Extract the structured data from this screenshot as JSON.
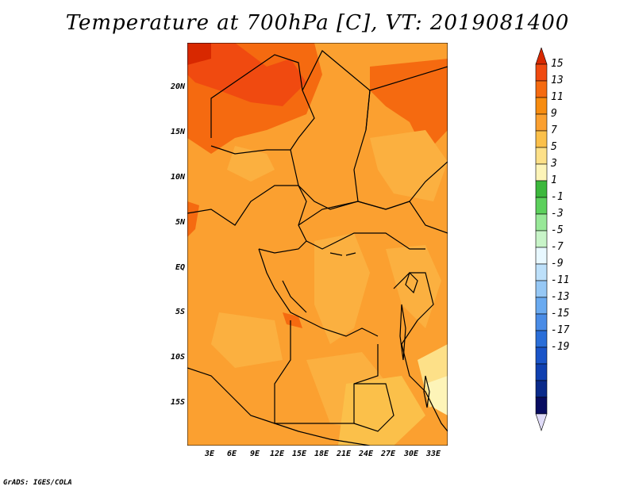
{
  "title": "Temperature at 700hPa [C], VT: 2019081400",
  "credit": "GrADS: IGES/COLA",
  "lat_ticks": [
    "20N",
    "15N",
    "10N",
    "5N",
    "EQ",
    "5S",
    "10S",
    "15S"
  ],
  "lon_ticks": [
    "3E",
    "6E",
    "9E",
    "12E",
    "15E",
    "18E",
    "21E",
    "24E",
    "27E",
    "30E",
    "33E"
  ],
  "colorbar": {
    "labels": [
      "15",
      "13",
      "11",
      "9",
      "7",
      "5",
      "3",
      "1",
      "-1",
      "-3",
      "-5",
      "-7",
      "-9",
      "-11",
      "-13",
      "-15",
      "-17",
      "-19"
    ],
    "colors": [
      "#d82800",
      "#f04a10",
      "#f56a10",
      "#f78c10",
      "#fba030",
      "#fbc04a",
      "#fde088",
      "#fdf4b8",
      "#3cb83c",
      "#5cd05c",
      "#98e898",
      "#c8f4c8",
      "#e8f8ff",
      "#bde0fa",
      "#96c8f5",
      "#6aaaf0",
      "#4a8ce6",
      "#2a6ed8",
      "#1a54c8",
      "#1040b0",
      "#0a2a8a",
      "#080c60",
      "#e0dcf8"
    ]
  },
  "colors": {
    "map_dominant": "#fba030",
    "map_warm": "#f56a10",
    "map_hot": "#f04a10",
    "map_pale": "#fbc04a",
    "border": "#000000"
  }
}
